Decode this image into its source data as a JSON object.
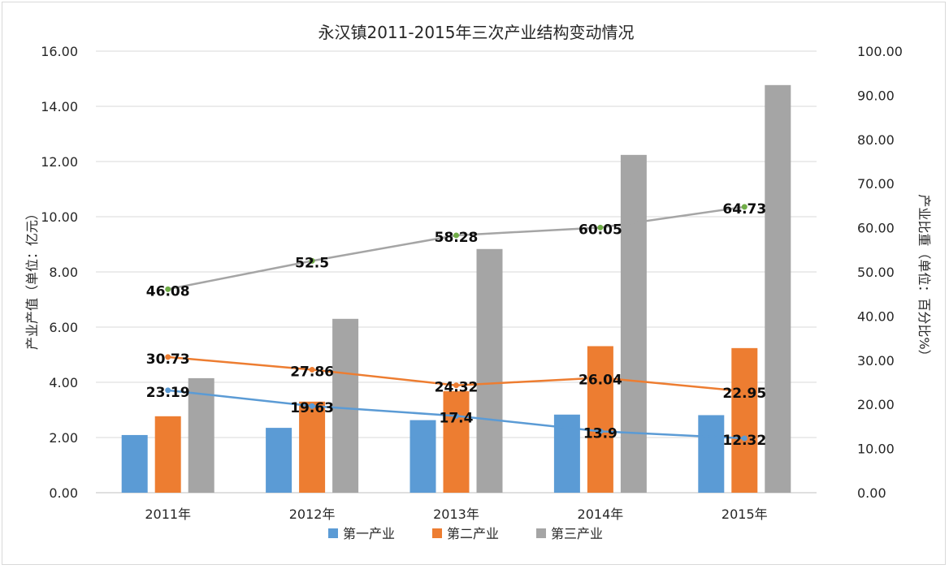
{
  "chart_data": {
    "type": "bar",
    "title": "永汉镇2011-2015年三次产业结构变动情况",
    "categories": [
      "2011年",
      "2012年",
      "2013年",
      "2014年",
      "2015年"
    ],
    "y_left": {
      "label": "产业产值（单位：亿元）",
      "ylim": [
        0,
        16
      ],
      "ticks": [
        "0.00",
        "2.00",
        "4.00",
        "6.00",
        "8.00",
        "10.00",
        "12.00",
        "14.00",
        "16.00"
      ]
    },
    "y_right": {
      "label": "产业比重（单位：百分比%）",
      "ylim": [
        0,
        100
      ],
      "ticks": [
        "0.00",
        "10.00",
        "20.00",
        "30.00",
        "40.00",
        "50.00",
        "60.00",
        "70.00",
        "80.00",
        "90.00",
        "100.00"
      ]
    },
    "bar_series": [
      {
        "name": "第一产业",
        "color": "#5b9bd5",
        "values": [
          2.09,
          2.35,
          2.63,
          2.83,
          2.81
        ]
      },
      {
        "name": "第二产业",
        "color": "#ed7d31",
        "values": [
          2.77,
          3.3,
          3.68,
          5.31,
          5.24
        ]
      },
      {
        "name": "第三产业",
        "color": "#a5a5a5",
        "values": [
          4.15,
          6.3,
          8.83,
          12.24,
          14.77
        ]
      }
    ],
    "line_series": [
      {
        "color": "#5b9bd5",
        "axis": "right",
        "values": [
          23.19,
          19.63,
          17.4,
          13.9,
          12.32
        ],
        "labels": [
          "23.19",
          "19.63",
          "17.4",
          "13.9",
          "12.32"
        ]
      },
      {
        "color": "#ed7d31",
        "axis": "right",
        "values": [
          30.73,
          27.86,
          24.32,
          26.04,
          22.95
        ],
        "labels": [
          "30.73",
          "27.86",
          "24.32",
          "26.04",
          "22.95"
        ]
      },
      {
        "color": "#a5a5a5",
        "axis": "right",
        "values": [
          46.08,
          52.5,
          58.28,
          60.05,
          64.73
        ],
        "labels": [
          "46.08",
          "52.5",
          "58.28",
          "60.05",
          "64.73"
        ],
        "marker_color": "#70ad47"
      }
    ],
    "grid": true,
    "legend": "bottom"
  }
}
